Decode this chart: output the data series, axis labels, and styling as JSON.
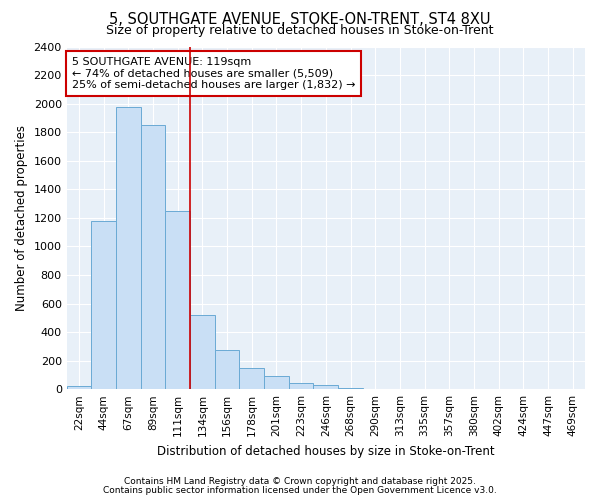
{
  "title_line1": "5, SOUTHGATE AVENUE, STOKE-ON-TRENT, ST4 8XU",
  "title_line2": "Size of property relative to detached houses in Stoke-on-Trent",
  "xlabel": "Distribution of detached houses by size in Stoke-on-Trent",
  "ylabel": "Number of detached properties",
  "categories": [
    "22sqm",
    "44sqm",
    "67sqm",
    "89sqm",
    "111sqm",
    "134sqm",
    "156sqm",
    "178sqm",
    "201sqm",
    "223sqm",
    "246sqm",
    "268sqm",
    "290sqm",
    "313sqm",
    "335sqm",
    "357sqm",
    "380sqm",
    "402sqm",
    "424sqm",
    "447sqm",
    "469sqm"
  ],
  "values": [
    25,
    1175,
    1975,
    1850,
    1250,
    520,
    275,
    150,
    90,
    40,
    30,
    5,
    2,
    1,
    0,
    0,
    0,
    0,
    0,
    0,
    0
  ],
  "bar_color": "#c9dff5",
  "bar_edge_color": "#6aaad4",
  "property_line_x": 4.5,
  "annotation_text": "5 SOUTHGATE AVENUE: 119sqm\n← 74% of detached houses are smaller (5,509)\n25% of semi-detached houses are larger (1,832) →",
  "annotation_box_color": "#ffffff",
  "annotation_box_edge": "#cc0000",
  "red_line_color": "#cc0000",
  "fig_background_color": "#ffffff",
  "ax_background_color": "#e8f0f8",
  "grid_color": "#ffffff",
  "ylim": [
    0,
    2400
  ],
  "yticks": [
    0,
    200,
    400,
    600,
    800,
    1000,
    1200,
    1400,
    1600,
    1800,
    2000,
    2200,
    2400
  ],
  "footer_line1": "Contains HM Land Registry data © Crown copyright and database right 2025.",
  "footer_line2": "Contains public sector information licensed under the Open Government Licence v3.0."
}
